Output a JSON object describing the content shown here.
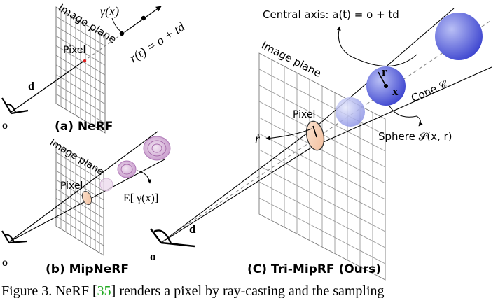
{
  "panel_a": {
    "image_plane": "Image plane",
    "pixel": "Pixel",
    "gamma": "γ(x)",
    "ray_eq": "r(t) = o + td",
    "d": "d",
    "o": "o",
    "caption": "(a) NeRF"
  },
  "panel_b": {
    "image_plane": "Image plane",
    "pixel": "Pixel",
    "expectation": "E[ γ(x)]",
    "o": "o",
    "caption": "(b) MipNeRF"
  },
  "panel_c": {
    "central_axis": "Central axis: a(t) = o + td",
    "image_plane": "Image plane",
    "pixel": "Pixel",
    "r_dot": "ṙ",
    "r": "r",
    "x": "x",
    "cone": "Cone 𝒞",
    "sphere": "Sphere 𝓢(x, r)",
    "d": "d",
    "o": "o",
    "caption": "(C) Tri-MipRF (Ours)"
  },
  "figure_caption": {
    "prefix": "Figure 3. NeRF [",
    "ref": "35",
    "suffix": "] renders a pixel by ray-casting and the sampling"
  },
  "colors": {
    "sphere_blue": "#4a55d8",
    "sphere_light": "#c8cdf5",
    "pixel_fill": "#f7d2b8",
    "mip_purple": "#b07ab8",
    "ray_red": "#e02020",
    "ref_green": "#22aa22"
  }
}
